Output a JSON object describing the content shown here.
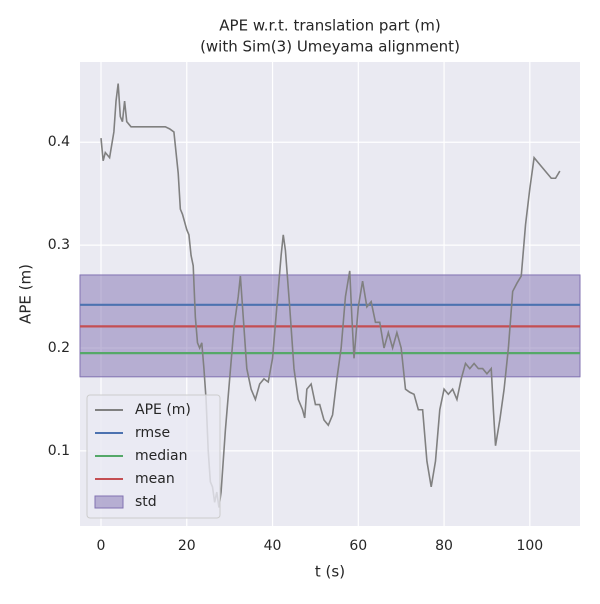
{
  "chart_data": {
    "type": "line",
    "title": "APE w.r.t. translation part (m)",
    "subtitle": "(with Sim(3) Umeyama alignment)",
    "x_label": "t (s)",
    "y_label": "APE (m)",
    "xlim": [
      -4.9,
      111.7
    ],
    "ylim": [
      0.027,
      0.478
    ],
    "xticks": [
      0,
      20,
      40,
      60,
      80,
      100
    ],
    "yticks": [
      0.1,
      0.2,
      0.3,
      0.4
    ],
    "grid": true,
    "legend": "lower left",
    "series": [
      {
        "name": "APE (m)",
        "color": "#808080",
        "x": [
          0,
          0.5,
          1,
          2,
          3,
          3.5,
          4,
          4.5,
          5,
          5.5,
          6,
          7,
          10,
          15,
          16,
          17,
          17.5,
          18,
          18.5,
          19,
          20,
          20.5,
          21,
          21.5,
          22,
          22.5,
          23,
          23.5,
          24,
          24.5,
          25,
          25.5,
          26,
          26.5,
          27,
          27.5,
          28,
          29,
          30,
          31,
          32,
          32.5,
          33,
          34,
          35,
          36,
          37,
          38,
          39,
          40,
          41,
          42,
          42.5,
          43,
          44,
          45,
          46,
          47,
          47.5,
          48,
          49,
          50,
          51,
          52,
          53,
          54,
          55,
          56,
          57,
          58,
          58.5,
          59,
          60,
          61,
          62,
          63,
          64,
          65,
          66,
          67,
          68,
          69,
          70,
          71,
          72,
          73,
          74,
          75,
          76,
          77,
          78,
          79,
          80,
          81,
          82,
          83,
          84,
          85,
          86,
          87,
          88,
          89,
          90,
          91,
          91.5,
          92,
          93,
          94,
          95,
          96,
          97,
          98,
          99,
          100,
          101,
          102,
          103,
          104,
          105,
          106,
          107
        ],
        "values": [
          0.404,
          0.382,
          0.39,
          0.385,
          0.41,
          0.44,
          0.457,
          0.425,
          0.42,
          0.44,
          0.42,
          0.415,
          0.415,
          0.415,
          0.413,
          0.41,
          0.39,
          0.37,
          0.335,
          0.33,
          0.315,
          0.31,
          0.29,
          0.28,
          0.23,
          0.205,
          0.2,
          0.205,
          0.18,
          0.15,
          0.1,
          0.07,
          0.065,
          0.05,
          0.06,
          0.045,
          0.06,
          0.12,
          0.17,
          0.22,
          0.25,
          0.27,
          0.24,
          0.18,
          0.16,
          0.15,
          0.165,
          0.17,
          0.167,
          0.19,
          0.24,
          0.29,
          0.31,
          0.295,
          0.24,
          0.18,
          0.15,
          0.14,
          0.132,
          0.16,
          0.165,
          0.145,
          0.145,
          0.13,
          0.125,
          0.135,
          0.17,
          0.2,
          0.25,
          0.275,
          0.23,
          0.19,
          0.24,
          0.265,
          0.24,
          0.245,
          0.225,
          0.225,
          0.2,
          0.215,
          0.2,
          0.215,
          0.2,
          0.16,
          0.157,
          0.155,
          0.14,
          0.14,
          0.09,
          0.065,
          0.09,
          0.14,
          0.16,
          0.155,
          0.16,
          0.15,
          0.17,
          0.185,
          0.18,
          0.185,
          0.18,
          0.18,
          0.175,
          0.18,
          0.14,
          0.105,
          0.13,
          0.16,
          0.2,
          0.255,
          0.263,
          0.27,
          0.32,
          0.355,
          0.385,
          0.38,
          0.375,
          0.37,
          0.365,
          0.365,
          0.372
        ]
      }
    ],
    "hlines": [
      {
        "name": "rmse",
        "color": "#4c72b0",
        "value": 0.242
      },
      {
        "name": "median",
        "color": "#55a868",
        "value": 0.195
      },
      {
        "name": "mean",
        "color": "#c44e52",
        "value": 0.221
      }
    ],
    "band": {
      "name": "std",
      "color": "#8172b2",
      "lower": 0.172,
      "upper": 0.271
    }
  }
}
